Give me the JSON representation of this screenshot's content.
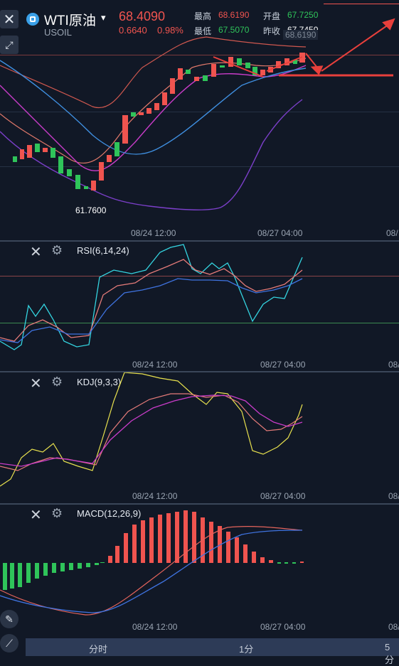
{
  "header": {
    "title": "WTI原油",
    "symbol": "USOIL",
    "price": "68.4090",
    "change": "0.6640",
    "change_pct": "0.98%",
    "high_label": "最高",
    "high_value": "68.6190",
    "open_label": "开盘",
    "open_value": "67.7250",
    "low_label": "最低",
    "low_value": "67.5070",
    "prev_label": "昨收",
    "prev_value": "67.7450",
    "price_tag": "68.6190"
  },
  "colors": {
    "up": "#f0544f",
    "down": "#2fc45a",
    "bg": "#111826"
  },
  "main_chart": {
    "low_marker": "61.7600",
    "x_labels": [
      "08/24 12:00",
      "08/27 04:00",
      "08/"
    ]
  },
  "rsi": {
    "title": "RSI(6,14,24)",
    "x_labels": [
      "08/24 12:00",
      "08/27 04:00",
      "08/"
    ]
  },
  "kdj": {
    "title": "KDJ(9,3,3)",
    "x_labels": [
      "08/24 12:00",
      "08/27 04:00",
      "08/"
    ]
  },
  "macd": {
    "title": "MACD(12,26,9)",
    "x_labels": [
      "08/24 12:00",
      "08/27 04:00",
      "08/"
    ]
  },
  "timeframes": [
    "分时",
    "1分",
    "5分"
  ],
  "icons": [
    "close-icon",
    "ma-toggle-icon",
    "dropdown-icon",
    "gear-icon",
    "pen-icon",
    "line-tool-icon"
  ]
}
